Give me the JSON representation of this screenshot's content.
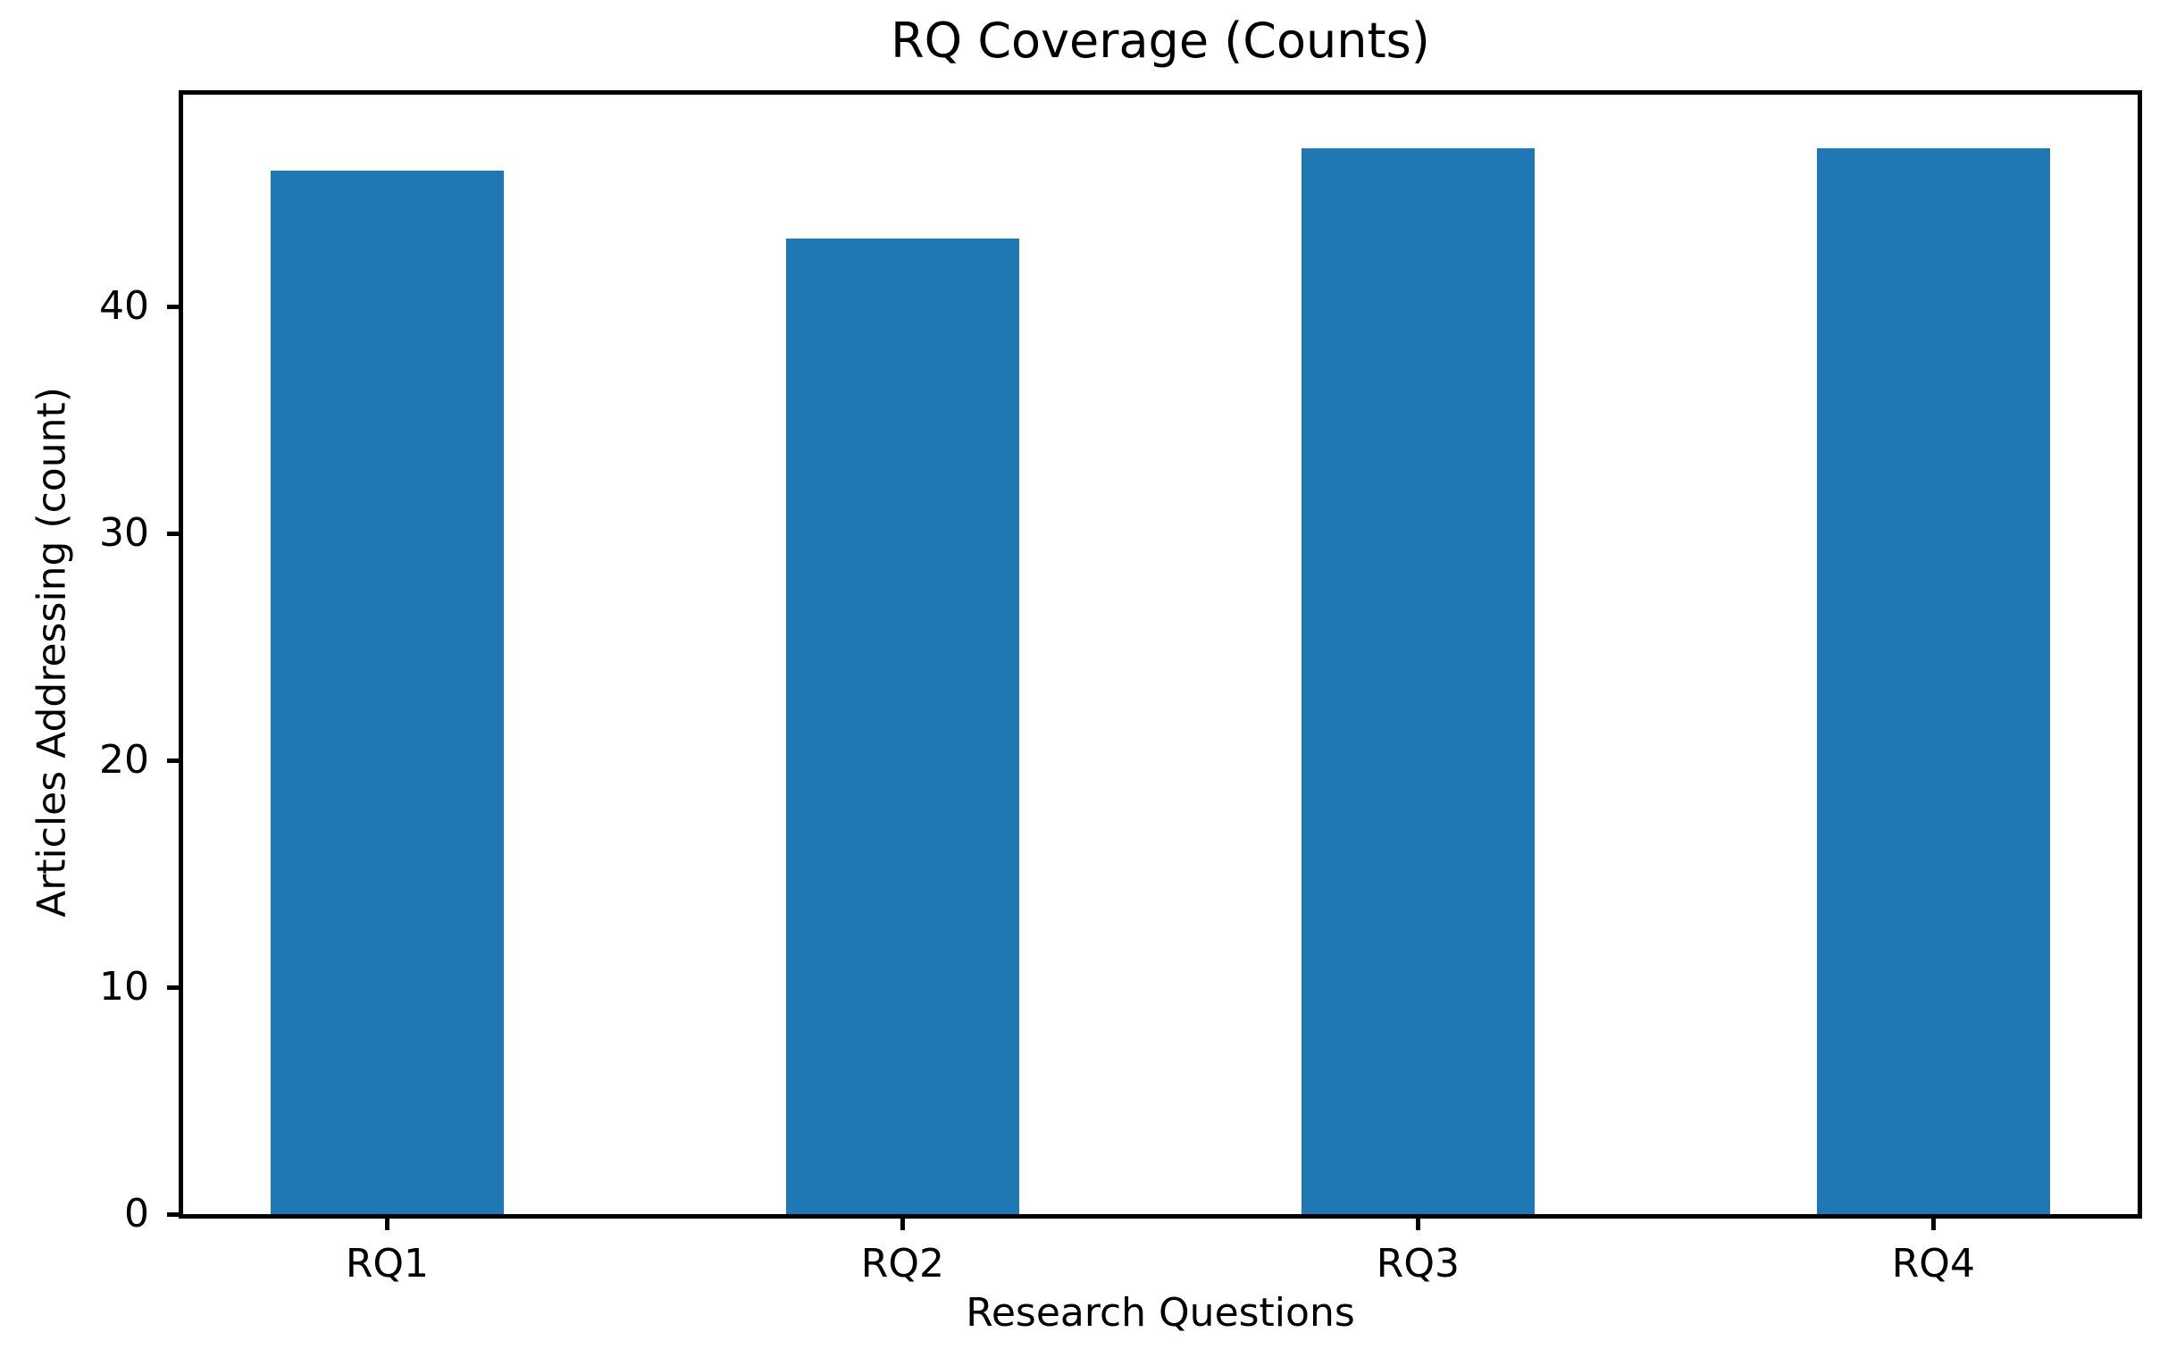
{
  "figure": {
    "background_color": "#ffffff",
    "text_color": "#000000"
  },
  "chart_data": {
    "type": "bar",
    "title": "RQ Coverage (Counts)",
    "categories": [
      "RQ1",
      "RQ2",
      "RQ3",
      "RQ4"
    ],
    "values": [
      46,
      43,
      47,
      47
    ],
    "xlabel": "Research Questions",
    "ylabel": "Articles Addressing (count)",
    "ylim": [
      0,
      49.35
    ],
    "yticks": [
      0,
      10,
      20,
      30,
      40
    ],
    "bar_color": "#1f77b4",
    "axis_color": "#000000",
    "grid": false,
    "legend": false
  }
}
